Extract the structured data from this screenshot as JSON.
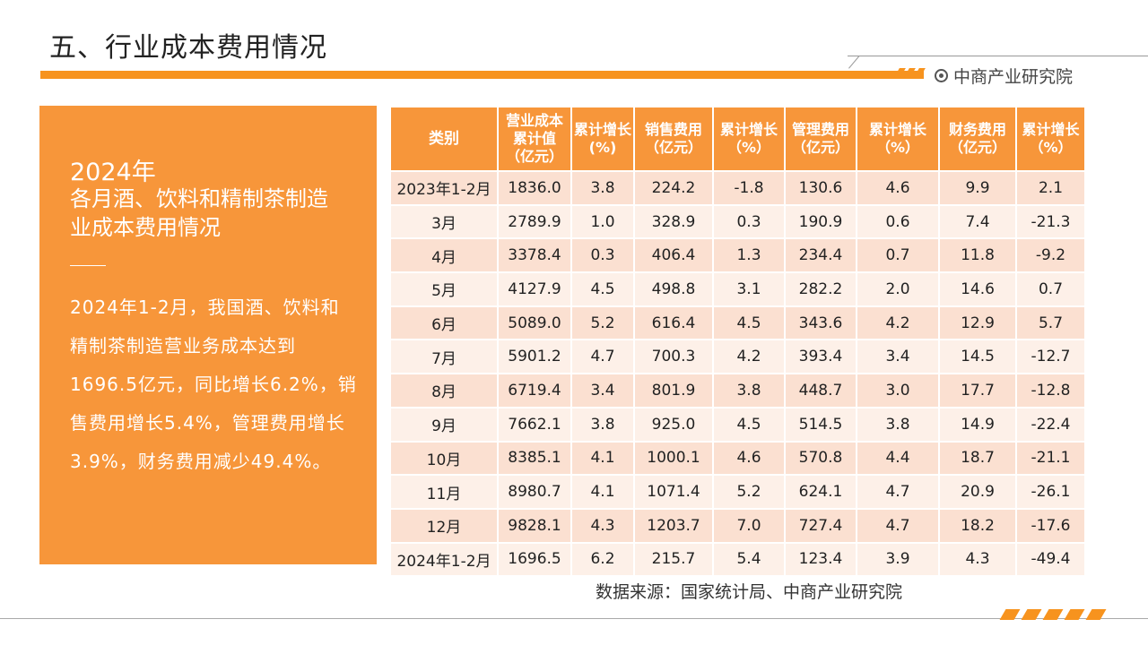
{
  "header": {
    "title": "五、行业成本费用情况",
    "brand": "中商产业研究院"
  },
  "side_panel": {
    "year": "2024年",
    "heading": "各月酒、饮料和精制茶制造业成本费用情况",
    "body": "2024年1-2月，我国酒、饮料和精制茶制造营业务成本达到1696.5亿元，同比增长6.2%，销售费用增长5.4%，管理费用增长3.9%，财务费用减少49.4%。"
  },
  "table": {
    "headers": [
      "类别",
      "营业成本累计值（亿元）",
      "累计增长(%)",
      "销售费用（亿元）",
      "累计增长（%）",
      "管理费用（亿元）",
      "累计增长（%）",
      "财务费用（亿元）",
      "累计增长（%）"
    ],
    "rows": [
      [
        "2023年1-2月",
        "1836.0",
        "3.8",
        "224.2",
        "-1.8",
        "130.6",
        "4.6",
        "9.9",
        "2.1"
      ],
      [
        "3月",
        "2789.9",
        "1.0",
        "328.9",
        "0.3",
        "190.9",
        "0.6",
        "7.4",
        "-21.3"
      ],
      [
        "4月",
        "3378.4",
        "0.3",
        "406.4",
        "1.3",
        "234.4",
        "0.7",
        "11.8",
        "-9.2"
      ],
      [
        "5月",
        "4127.9",
        "4.5",
        "498.8",
        "3.1",
        "282.2",
        "2.0",
        "14.6",
        "0.7"
      ],
      [
        "6月",
        "5089.0",
        "5.2",
        "616.4",
        "4.5",
        "343.6",
        "4.2",
        "12.9",
        "5.7"
      ],
      [
        "7月",
        "5901.2",
        "4.7",
        "700.3",
        "4.2",
        "393.4",
        "3.4",
        "14.5",
        "-12.7"
      ],
      [
        "8月",
        "6719.4",
        "3.4",
        "801.9",
        "3.8",
        "448.7",
        "3.0",
        "17.7",
        "-12.8"
      ],
      [
        "9月",
        "7662.1",
        "3.8",
        "925.0",
        "4.5",
        "514.5",
        "3.8",
        "14.9",
        "-22.4"
      ],
      [
        "10月",
        "8385.1",
        "4.1",
        "1000.1",
        "4.6",
        "570.8",
        "4.4",
        "18.7",
        "-21.1"
      ],
      [
        "11月",
        "8980.7",
        "4.1",
        "1071.4",
        "5.2",
        "624.1",
        "4.7",
        "20.9",
        "-26.1"
      ],
      [
        "12月",
        "9828.1",
        "4.3",
        "1203.7",
        "7.0",
        "727.4",
        "4.7",
        "18.2",
        "-17.6"
      ],
      [
        "2024年1-2月",
        "1696.5",
        "6.2",
        "215.7",
        "5.4",
        "123.4",
        "3.9",
        "4.3",
        "-49.4"
      ]
    ]
  },
  "source": "数据来源：国家统计局、中商产业研究院",
  "colors": {
    "accent": "#f7931e",
    "panel": "#f7963a",
    "row_odd": "#fbe0d1",
    "row_even": "#fdf0e8"
  }
}
